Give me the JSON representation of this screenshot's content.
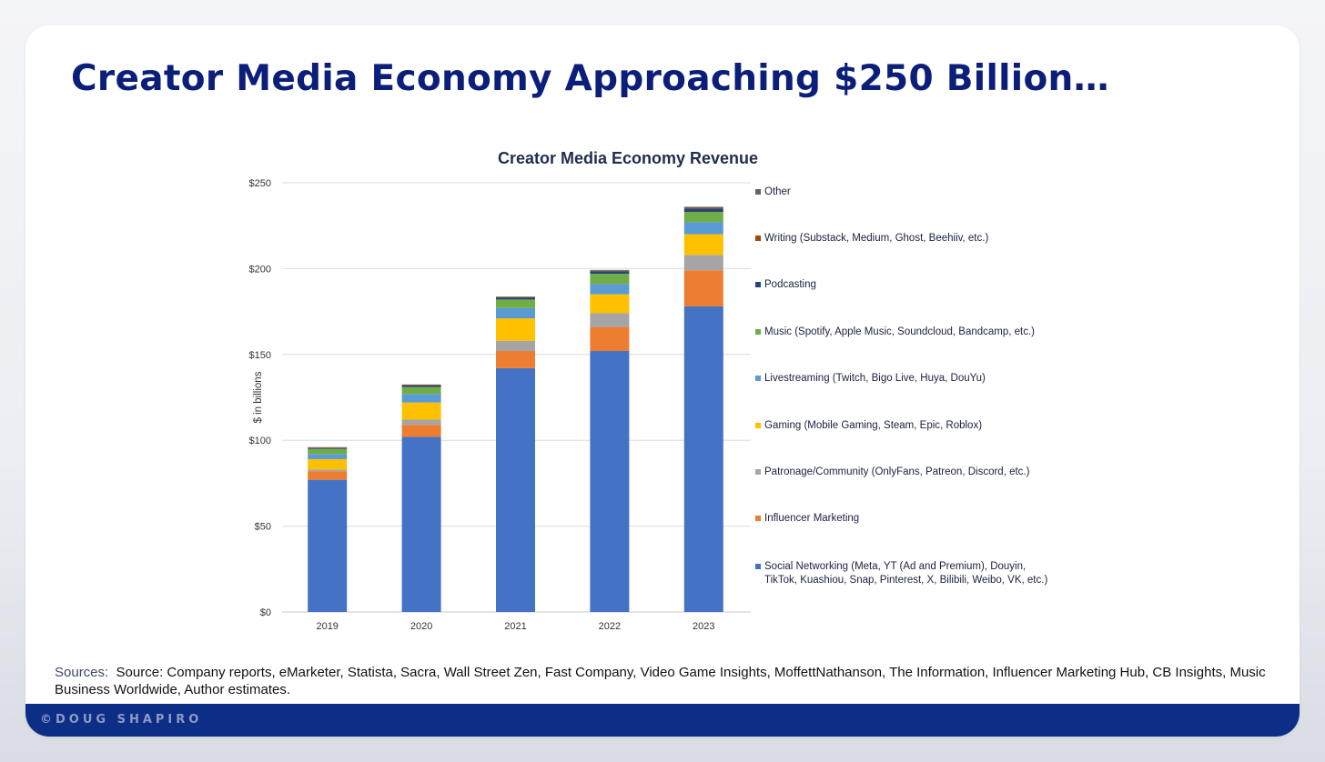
{
  "slide": {
    "title": "Creator Media Economy Approaching $250 Billion…",
    "sources_label": "Sources:",
    "sources_text": "Source: Company reports, eMarketer, Statista, Sacra, Wall Street Zen, Fast Company, Video Game Insights, MoffettNathanson, The Information, Influencer Marketing Hub, CB Insights, Music Business Worldwide, Author estimates.",
    "brand": "©DOUG SHAPIRO"
  },
  "colors": {
    "title": "#0b1e7a",
    "footer": "#0d2e86"
  },
  "chart_data": {
    "type": "bar",
    "stacked": true,
    "title": "Creator Media Economy Revenue",
    "xlabel": "",
    "ylabel": "$ in billions",
    "ylim": [
      0,
      250
    ],
    "yticks": [
      0,
      50,
      100,
      150,
      200,
      250
    ],
    "ytick_labels": [
      "$0",
      "$50",
      "$100",
      "$150",
      "$200",
      "$250"
    ],
    "grid": true,
    "legend_position": "right",
    "categories": [
      "2019",
      "2020",
      "2021",
      "2022",
      "2023"
    ],
    "series": [
      {
        "name": "Social Networking (Meta, YT (Ad and Premium), Douyin, TikTok, Kuashiou, Snap, Pinterest, X, Bilibili, Weibo, VK, etc.)",
        "color": "#4472c4",
        "values": [
          77,
          102,
          142,
          152,
          178
        ]
      },
      {
        "name": "Influencer Marketing",
        "color": "#ed7d31",
        "values": [
          5,
          7,
          10,
          14,
          21
        ]
      },
      {
        "name": "Patronage/Community (OnlyFans, Patreon, Discord, etc.)",
        "color": "#a5a5a5",
        "values": [
          1,
          3,
          6,
          8,
          9
        ]
      },
      {
        "name": "Gaming (Mobile Gaming, Steam, Epic, Roblox)",
        "color": "#ffc000",
        "values": [
          6,
          10,
          13,
          11,
          12
        ]
      },
      {
        "name": "Livestreaming (Twitch, Bigo Live, Huya, DouYu)",
        "color": "#5b9bd5",
        "values": [
          3,
          5,
          6,
          6,
          7
        ]
      },
      {
        "name": "Music (Spotify, Apple Music, Soundcloud, Bandcamp, etc.)",
        "color": "#70ad47",
        "values": [
          3,
          4,
          5,
          6,
          6
        ]
      },
      {
        "name": "Podcasting",
        "color": "#264478",
        "values": [
          0.5,
          1,
          1,
          1.5,
          2
        ]
      },
      {
        "name": "Writing (Substack, Medium, Ghost, Beehiiv, etc.)",
        "color": "#9e480e",
        "values": [
          0.2,
          0.2,
          0.3,
          0.3,
          0.4
        ]
      },
      {
        "name": "Other",
        "color": "#636363",
        "values": [
          0.3,
          0.3,
          0.4,
          0.4,
          0.6
        ]
      }
    ]
  }
}
